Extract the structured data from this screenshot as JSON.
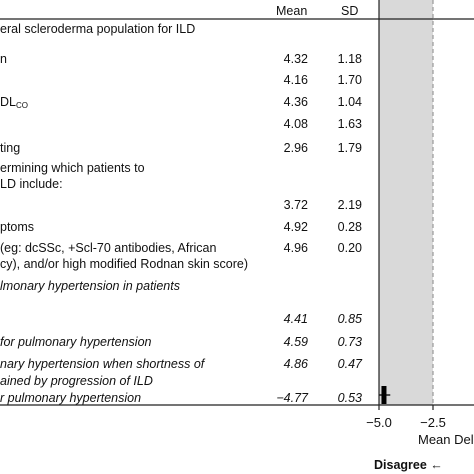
{
  "header": {
    "mean_label": "Mean",
    "sd_label": "SD"
  },
  "rows": [
    {
      "label": "eral scleroderma population for ILD",
      "mean": "",
      "sd": "",
      "italic": false
    },
    {
      "label": "n",
      "mean": "4.32",
      "sd": "1.18",
      "italic": false
    },
    {
      "label": "",
      "mean": "4.16",
      "sd": "1.70",
      "italic": false
    },
    {
      "label": "DL",
      "label_sub": "CO",
      "mean": "4.36",
      "sd": "1.04",
      "italic": false
    },
    {
      "label": "",
      "mean": "4.08",
      "sd": "1.63",
      "italic": false
    },
    {
      "label": "ting",
      "mean": "2.96",
      "sd": "1.79",
      "italic": false
    },
    {
      "label": "ermining which patients to",
      "mean": "",
      "sd": "",
      "italic": false
    },
    {
      "label": "LD include:",
      "mean": "",
      "sd": "",
      "italic": false
    },
    {
      "label": "",
      "mean": "3.72",
      "sd": "2.19",
      "italic": false
    },
    {
      "label": "ptoms",
      "mean": "4.92",
      "sd": "0.28",
      "italic": false
    },
    {
      "label": "(eg: dcSSc, +Scl-70 antibodies, African",
      "mean": "4.96",
      "sd": "0.20",
      "italic": false
    },
    {
      "label": "cy), and/or high modified Rodnan skin score)",
      "mean": "",
      "sd": "",
      "italic": false
    },
    {
      "label": "lmonary hypertension in patients",
      "mean": "",
      "sd": "",
      "italic": true
    },
    {
      "label": "",
      "mean": "4.41",
      "sd": "0.85",
      "italic": true
    },
    {
      "label": "for pulmonary hypertension",
      "mean": "4.59",
      "sd": "0.73",
      "italic": true
    },
    {
      "label": "nary hypertension when shortness of",
      "mean": "4.86",
      "sd": "0.47",
      "italic": true
    },
    {
      "label": "ained by progression of ILD",
      "mean": "",
      "sd": "",
      "italic": true
    },
    {
      "label": "r pulmonary hypertension",
      "mean": "−4.77",
      "sd": "0.53",
      "italic": true
    }
  ],
  "chart_data": {
    "type": "scatter",
    "x_ticks": [
      "−5.0",
      "−2.5"
    ],
    "xlim": [
      -5.0,
      2.5
    ],
    "reference_line": -2.5,
    "shaded_range": [
      -5.0,
      -2.5
    ],
    "xlabel": "Mean Del",
    "points": [
      {
        "x": -4.77,
        "sd": 0.53
      }
    ],
    "direction_label": "Disagree ←"
  }
}
